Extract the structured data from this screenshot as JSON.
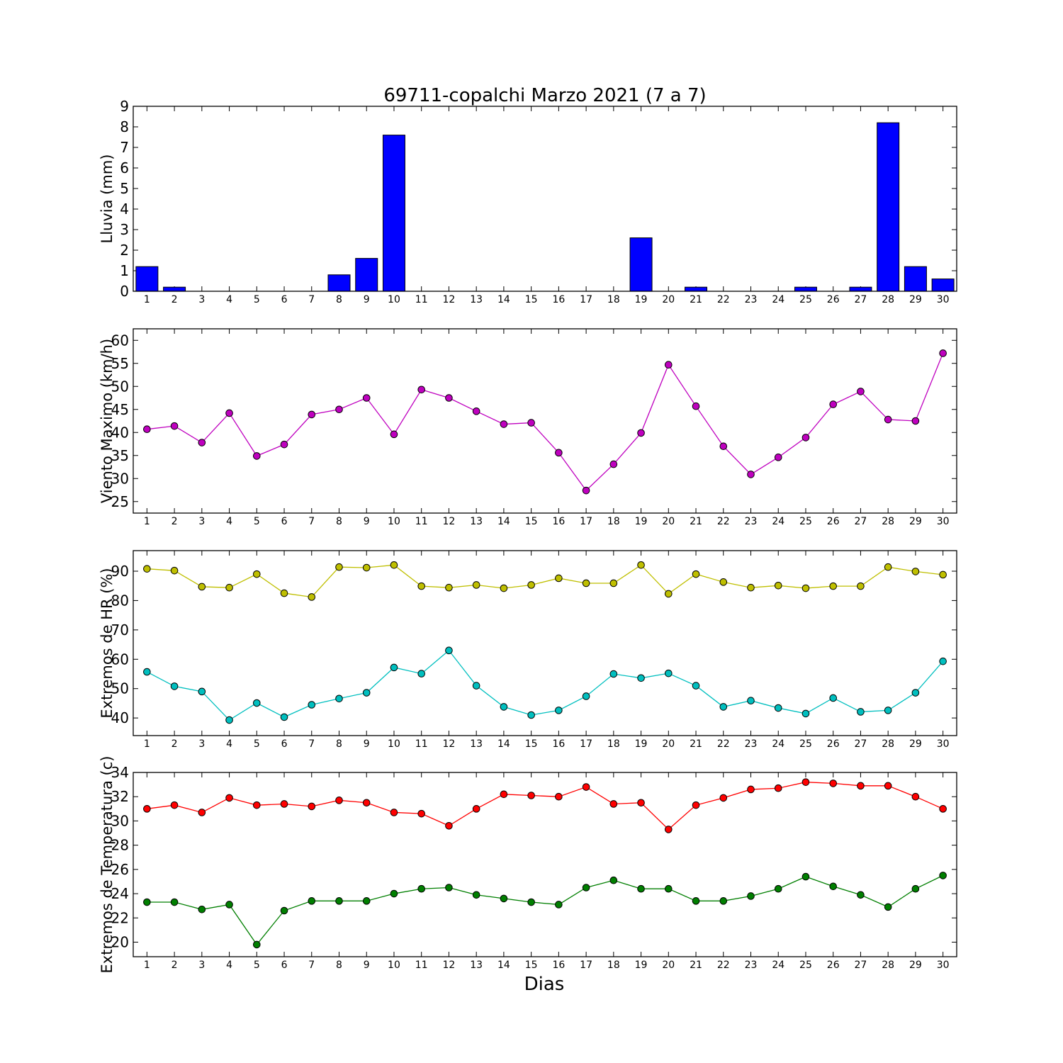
{
  "figure": {
    "title": "69711-copalchi Marzo 2021  (7 a 7)",
    "xlabel": "Dias"
  },
  "chart_data": [
    {
      "type": "bar",
      "ylabel": "Lluvia (mm)",
      "ylim": [
        0,
        9
      ],
      "yticks": [
        0,
        1,
        2,
        3,
        4,
        5,
        6,
        7,
        8,
        9
      ],
      "x": [
        1,
        2,
        3,
        4,
        5,
        6,
        7,
        8,
        9,
        10,
        11,
        12,
        13,
        14,
        15,
        16,
        17,
        18,
        19,
        20,
        21,
        22,
        23,
        24,
        25,
        26,
        27,
        28,
        29,
        30
      ],
      "values": [
        1.2,
        0.2,
        0,
        0,
        0,
        0,
        0,
        0.8,
        1.6,
        7.6,
        0,
        0,
        0,
        0,
        0,
        0,
        0,
        0,
        2.6,
        0,
        0.2,
        0,
        0,
        0,
        0.2,
        0,
        0.2,
        8.2,
        1.2,
        0.6
      ],
      "color": "#0000ff"
    },
    {
      "type": "line",
      "ylabel": "Viento Maximo (km/h)",
      "ylim": [
        22.5,
        62.5
      ],
      "yticks": [
        25,
        30,
        35,
        40,
        45,
        50,
        55,
        60
      ],
      "x": [
        1,
        2,
        3,
        4,
        5,
        6,
        7,
        8,
        9,
        10,
        11,
        12,
        13,
        14,
        15,
        16,
        17,
        18,
        19,
        20,
        21,
        22,
        23,
        24,
        25,
        26,
        27,
        28,
        29,
        30
      ],
      "series": [
        {
          "values": [
            40.7,
            41.4,
            37.8,
            44.2,
            34.9,
            37.4,
            43.9,
            45.0,
            47.5,
            39.6,
            49.3,
            47.5,
            44.6,
            41.8,
            42.1,
            35.6,
            27.4,
            33.1,
            39.9,
            54.7,
            45.7,
            37.0,
            30.9,
            34.6,
            38.9,
            46.1,
            48.9,
            42.8,
            42.5,
            57.2
          ],
          "color": "#bf00bf"
        }
      ]
    },
    {
      "type": "line",
      "ylabel": "Extremos de HR (%)",
      "ylim": [
        34,
        97
      ],
      "yticks": [
        40,
        50,
        60,
        70,
        80,
        90
      ],
      "x": [
        1,
        2,
        3,
        4,
        5,
        6,
        7,
        8,
        9,
        10,
        11,
        12,
        13,
        14,
        15,
        16,
        17,
        18,
        19,
        20,
        21,
        22,
        23,
        24,
        25,
        26,
        27,
        28,
        29,
        30
      ],
      "series": [
        {
          "values": [
            90.8,
            90.2,
            84.7,
            84.4,
            89.0,
            82.5,
            81.2,
            91.4,
            91.2,
            92.1,
            84.9,
            84.4,
            85.3,
            84.2,
            85.3,
            87.6,
            85.9,
            85.9,
            92.1,
            82.3,
            89.0,
            86.3,
            84.4,
            85.1,
            84.2,
            84.9,
            84.9,
            91.4,
            89.9,
            88.8
          ],
          "color": "#bfbf00"
        },
        {
          "values": [
            55.7,
            50.8,
            49.0,
            39.3,
            45.1,
            40.3,
            44.5,
            46.6,
            48.6,
            57.2,
            55.1,
            63.0,
            51.0,
            43.8,
            41.0,
            42.6,
            47.4,
            55.0,
            53.6,
            55.2,
            51.0,
            43.8,
            45.9,
            43.4,
            41.5,
            46.8,
            42.1,
            42.6,
            48.6,
            59.3
          ],
          "color": "#00bfbf"
        }
      ]
    },
    {
      "type": "line",
      "ylabel": "Extremos de Temperatura (c)",
      "ylim": [
        18.8,
        34
      ],
      "yticks": [
        20,
        22,
        24,
        26,
        28,
        30,
        32,
        34
      ],
      "x": [
        1,
        2,
        3,
        4,
        5,
        6,
        7,
        8,
        9,
        10,
        11,
        12,
        13,
        14,
        15,
        16,
        17,
        18,
        19,
        20,
        21,
        22,
        23,
        24,
        25,
        26,
        27,
        28,
        29,
        30
      ],
      "series": [
        {
          "values": [
            31.0,
            31.3,
            30.7,
            31.9,
            31.3,
            31.4,
            31.2,
            31.7,
            31.5,
            30.7,
            30.6,
            29.6,
            31.0,
            32.2,
            32.1,
            32.0,
            32.8,
            31.4,
            31.5,
            29.3,
            31.3,
            31.9,
            32.6,
            32.7,
            33.2,
            33.1,
            32.9,
            32.9,
            32.0,
            31.0
          ],
          "color": "#ff0000"
        },
        {
          "values": [
            23.3,
            23.3,
            22.7,
            23.1,
            19.8,
            22.6,
            23.4,
            23.4,
            23.4,
            24.0,
            24.4,
            24.5,
            23.9,
            23.6,
            23.3,
            23.1,
            24.5,
            25.1,
            24.4,
            24.4,
            23.4,
            23.4,
            23.8,
            24.4,
            25.4,
            24.6,
            23.9,
            22.9,
            24.4,
            25.5
          ],
          "color": "#007f00"
        }
      ]
    }
  ]
}
